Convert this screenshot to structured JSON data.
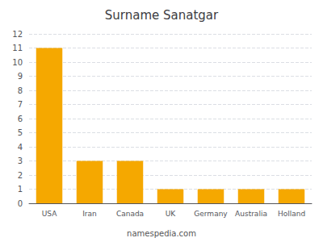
{
  "chart_data": {
    "type": "bar",
    "title": "Surname Sanatgar",
    "categories": [
      "USA",
      "Iran",
      "Canada",
      "UK",
      "Germany",
      "Australia",
      "Holland"
    ],
    "values": [
      11,
      3,
      3,
      1,
      1,
      1,
      1
    ],
    "color": "#F5A800",
    "ylim": [
      0,
      12
    ],
    "yticks": [
      0,
      1,
      2,
      3,
      4,
      5,
      6,
      7,
      8,
      9,
      10,
      11,
      12
    ],
    "grid": true,
    "annotations": [
      "namespedia.com"
    ]
  }
}
